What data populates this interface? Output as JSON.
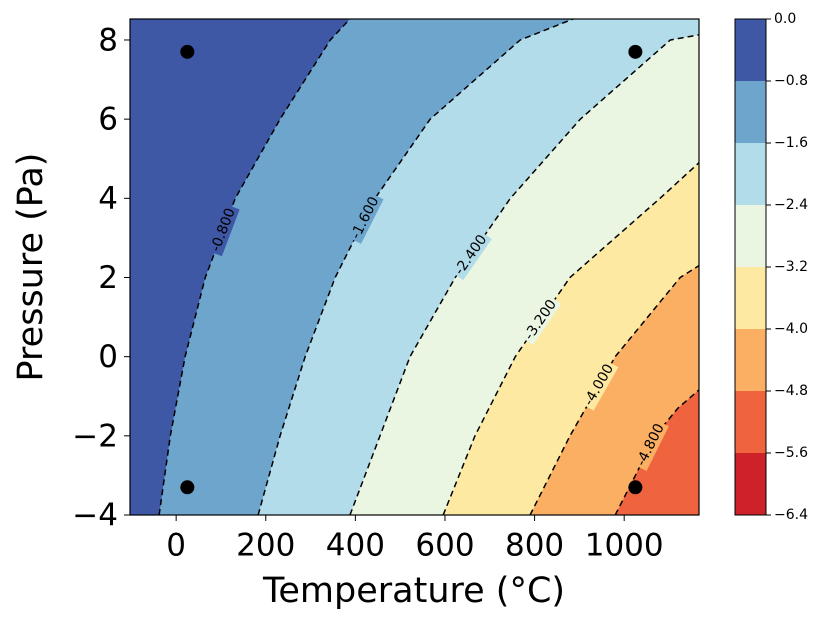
{
  "chart_data": {
    "type": "contour",
    "xlabel": "Temperature (°C)",
    "ylabel": "Pressure (Pa)",
    "xlim": [
      -103,
      1167
    ],
    "ylim": [
      -4,
      8.53
    ],
    "xticks": [
      0,
      200,
      400,
      600,
      800,
      1000
    ],
    "yticks": [
      {
        "value": -4,
        "label": "−4"
      },
      {
        "value": -2,
        "label": "−2"
      },
      0,
      2,
      4,
      6,
      8
    ],
    "line_color": "#000000",
    "line_style": "dashed",
    "contours": [
      {
        "level": -0.8,
        "label": "-0.800",
        "x": [
          -38,
          -13,
          20,
          65,
          132,
          232,
          344,
          388
        ],
        "y": [
          -4,
          -2,
          0,
          2,
          4,
          6,
          8,
          8.53
        ]
      },
      {
        "level": -1.6,
        "label": "-1.600",
        "x": [
          183,
          232,
          288,
          355,
          444,
          567,
          768,
          886
        ],
        "y": [
          -4,
          -2,
          0,
          2,
          4,
          6,
          8,
          8.53
        ]
      },
      {
        "level": -2.4,
        "label": "-2.400",
        "x": [
          388,
          455,
          522,
          623,
          746,
          902,
          1103,
          1167
        ],
        "y": [
          -4,
          -2,
          0,
          2,
          4,
          6,
          8,
          8.13
        ]
      },
      {
        "level": -3.2,
        "label": "-3.200",
        "x": [
          596,
          667,
          757,
          879,
          1080,
          1167
        ],
        "y": [
          -4,
          -2,
          0,
          2,
          4,
          4.9
        ]
      },
      {
        "level": -4.0,
        "label": "-4.000",
        "x": [
          790,
          879,
          980,
          1125,
          1167
        ],
        "y": [
          -4,
          -2,
          0,
          2,
          2.3
        ]
      },
      {
        "level": -4.8,
        "label": "-4.800",
        "x": [
          980,
          1025,
          1069,
          1120,
          1167
        ],
        "y": [
          -4,
          -3,
          -2,
          -1.3,
          -0.84
        ]
      }
    ],
    "points": {
      "color": "#000000",
      "x": [
        25,
        1025,
        25,
        1025
      ],
      "y": [
        7.7,
        7.7,
        -3.3,
        -3.3
      ]
    },
    "colorbar": {
      "ticks": [
        {
          "value": 0,
          "label": "0.0"
        },
        {
          "value": -0.8,
          "label": "−0.8"
        },
        {
          "value": -1.6,
          "label": "−1.6"
        },
        {
          "value": -2.4,
          "label": "−2.4"
        },
        {
          "value": -3.2,
          "label": "−3.2"
        },
        {
          "value": -4.0,
          "label": "−4.0"
        },
        {
          "value": -4.8,
          "label": "−4.8"
        },
        {
          "value": -5.6,
          "label": "−5.6"
        },
        {
          "value": -6.4,
          "label": "−6.4"
        }
      ],
      "colors": [
        "#3e58a6",
        "#6ea5cd",
        "#b3dcea",
        "#eaf5e2",
        "#fde9a1",
        "#fbaf63",
        "#ef643f",
        "#cd2229"
      ]
    }
  }
}
